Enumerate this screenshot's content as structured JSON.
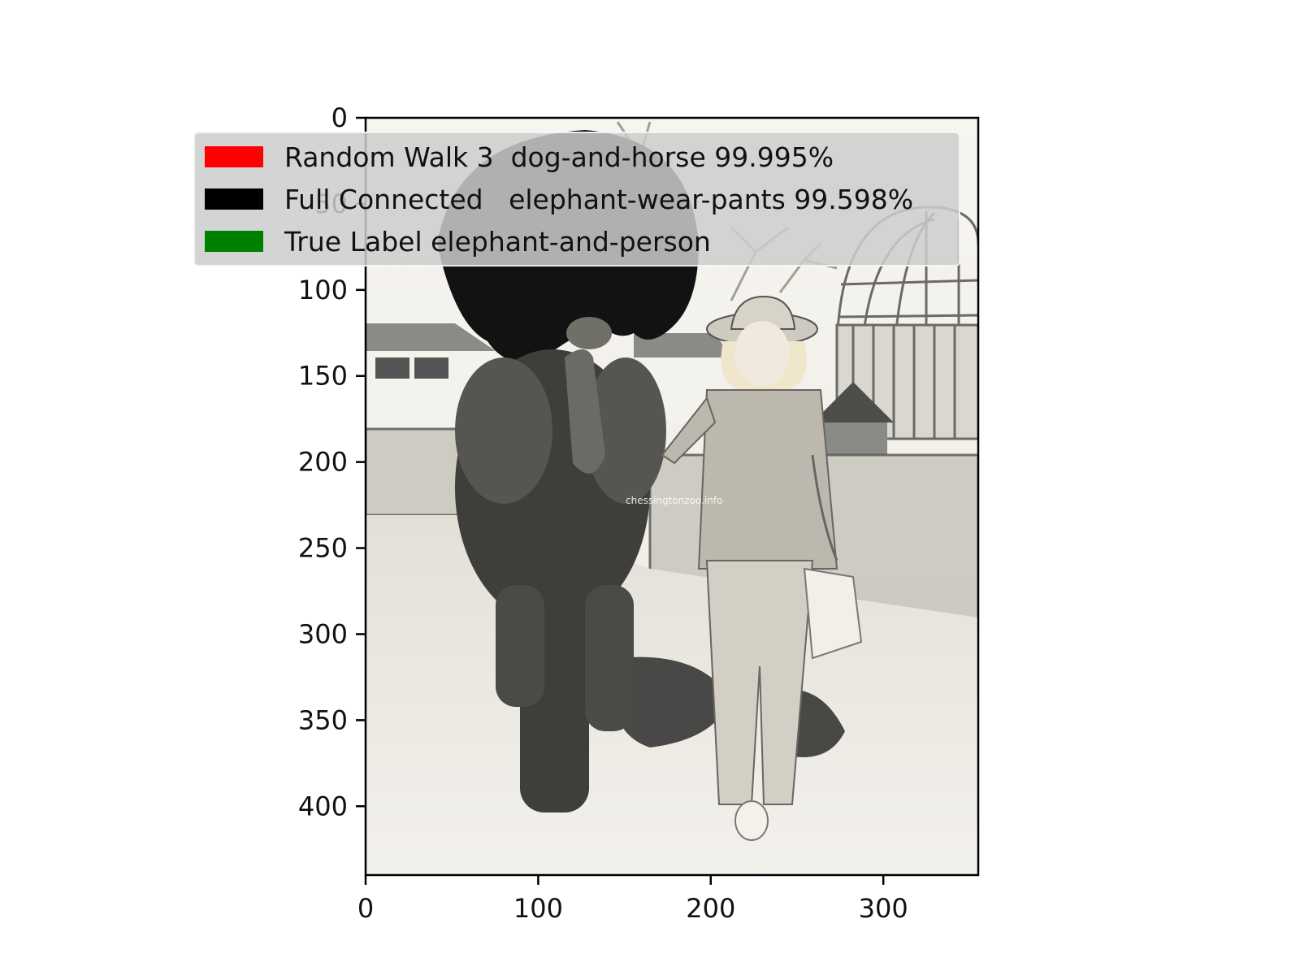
{
  "image": {
    "description_icon": "elephant-and-woman-photo",
    "watermark": "chessingtonzoo.info"
  },
  "axes": {
    "x": {
      "ticks": [
        "0",
        "100",
        "200",
        "300"
      ],
      "values": [
        0,
        100,
        200,
        300
      ],
      "range": [
        0,
        355
      ]
    },
    "y": {
      "ticks": [
        "0",
        "50",
        "100",
        "150",
        "200",
        "250",
        "300",
        "350",
        "400"
      ],
      "values": [
        0,
        50,
        100,
        150,
        200,
        250,
        300,
        350,
        400
      ],
      "range": [
        0,
        440
      ]
    }
  },
  "legend": {
    "placement": "upper-left",
    "entries": [
      {
        "label": "Random Walk 3  dog-and-horse 99.995%",
        "color": "#ff0000"
      },
      {
        "label": "Full Connected   elephant-wear-pants 99.598%",
        "color": "#000000"
      },
      {
        "label": "True Label elephant-and-person",
        "color": "#008000"
      }
    ]
  }
}
